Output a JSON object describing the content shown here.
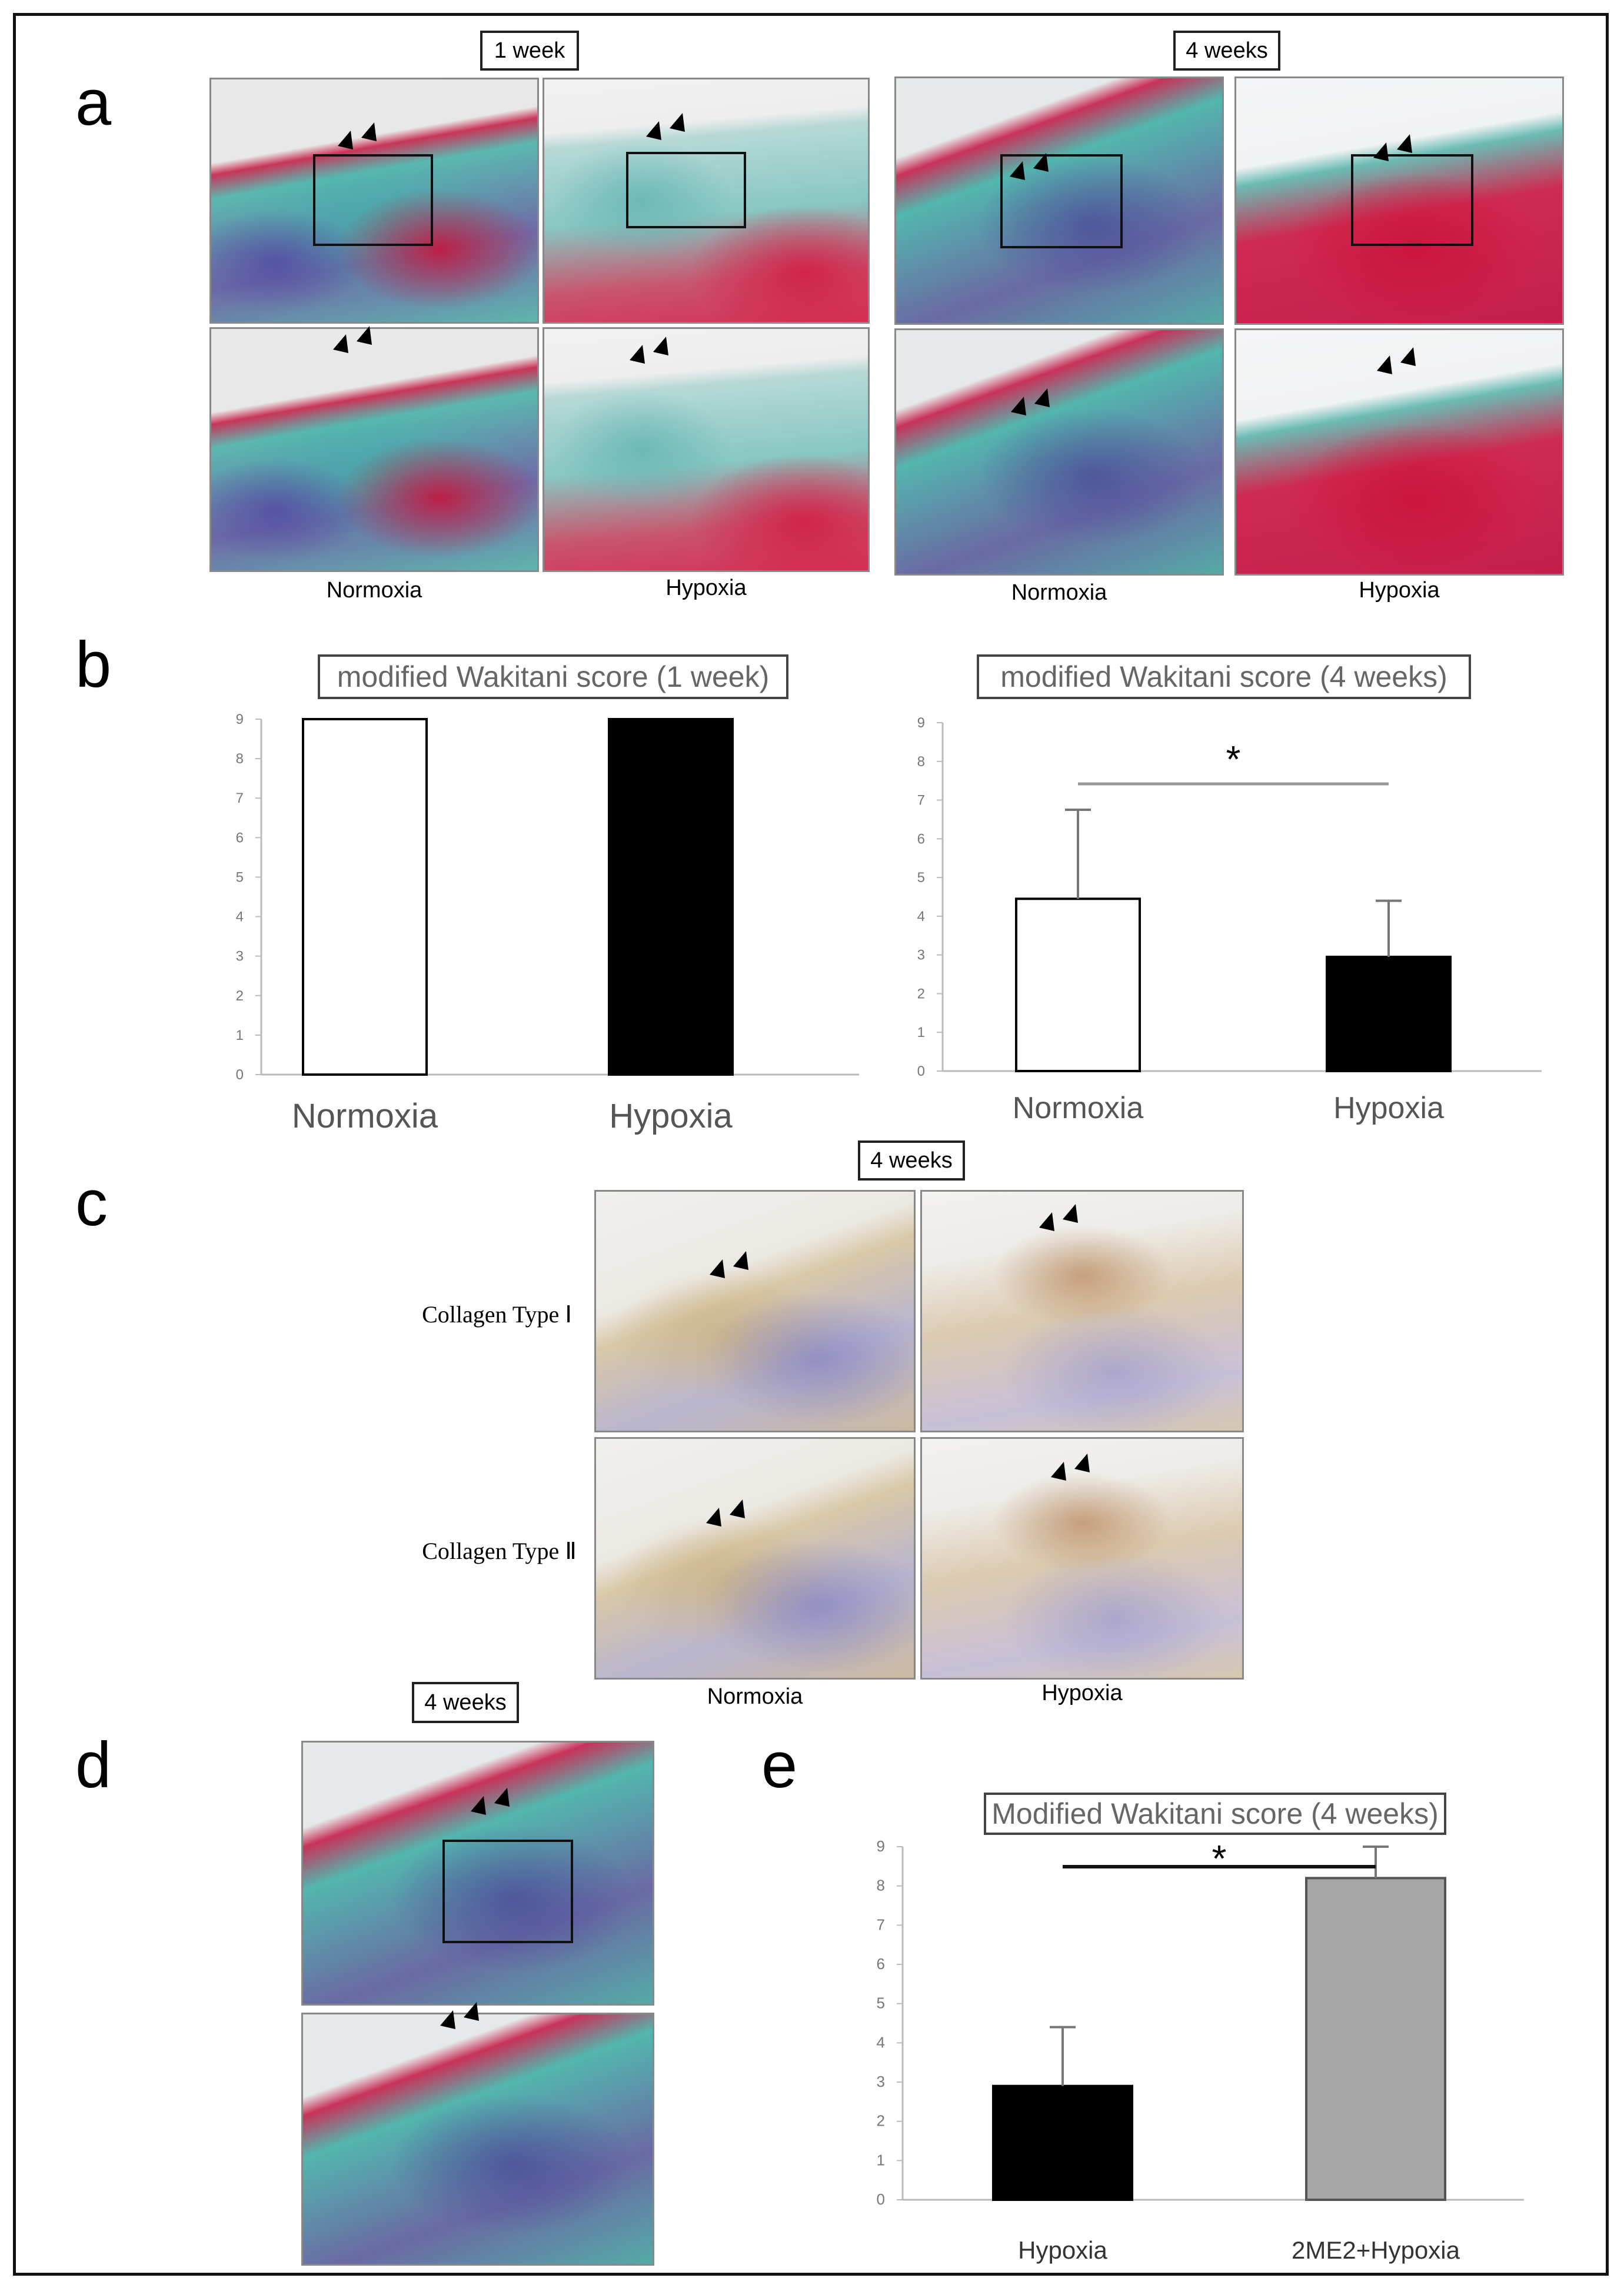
{
  "panels": {
    "a": {
      "label": "a",
      "time_1": "1 week",
      "time_4": "4 weeks",
      "cond_normoxia": "Normoxia",
      "cond_hypoxia": "Hypoxia"
    },
    "b": {
      "label": "b",
      "chart_left_title": "modified Wakitani score (1 week)",
      "chart_right_title": "modified Wakitani score (4 weeks)",
      "significance": "*"
    },
    "c": {
      "label": "c",
      "time": "4 weeks",
      "row_1": "Collagen Type Ⅰ",
      "row_2": "Collagen Type Ⅱ",
      "cond_normoxia": "Normoxia",
      "cond_hypoxia": "Hypoxia"
    },
    "d": {
      "label": "d",
      "time": "4 weeks"
    },
    "e": {
      "label": "e",
      "chart_title": "Modified Wakitani score (4 weeks)",
      "significance": "*"
    }
  },
  "colors": {
    "normoxia_bar": "#ffffff",
    "hypoxia_bar": "#000000",
    "me2_bar": "#a6a6a6"
  },
  "chart_data": [
    {
      "type": "bar",
      "title": "modified Wakitani score (1 week)",
      "categories": [
        "Normoxia",
        "Hypoxia"
      ],
      "values": [
        9,
        9
      ],
      "ylim": [
        0,
        9
      ],
      "yticks": [
        "0",
        "1",
        "2",
        "3",
        "4",
        "5",
        "6",
        "7",
        "8",
        "9"
      ],
      "bar_colors": [
        "#ffffff",
        "#000000"
      ]
    },
    {
      "type": "bar",
      "title": "modified Wakitani score (4 weeks)",
      "categories": [
        "Normoxia",
        "Hypoxia"
      ],
      "values": [
        4.45,
        2.95
      ],
      "errors": [
        2.3,
        1.45
      ],
      "ylim": [
        0,
        9
      ],
      "yticks": [
        "0",
        "1",
        "2",
        "3",
        "4",
        "5",
        "6",
        "7",
        "8",
        "9"
      ],
      "bar_colors": [
        "#ffffff",
        "#000000"
      ],
      "annotation": "*"
    },
    {
      "type": "bar",
      "title": "Modified Wakitani score (4 weeks)",
      "categories": [
        "Hypoxia",
        "2ME2+Hypoxia"
      ],
      "values": [
        2.9,
        8.2
      ],
      "errors": [
        1.5,
        0.8
      ],
      "ylim": [
        0,
        9
      ],
      "yticks": [
        "0",
        "1",
        "2",
        "3",
        "4",
        "5",
        "6",
        "7",
        "8",
        "9"
      ],
      "bar_colors": [
        "#000000",
        "#a6a6a6"
      ],
      "annotation": "*"
    }
  ]
}
